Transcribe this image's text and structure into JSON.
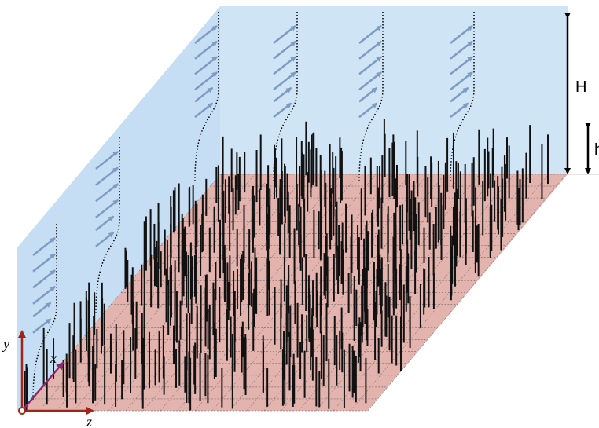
{
  "annotations": {
    "outer_height": "H",
    "canopy_height": "h"
  },
  "axes": {
    "x": "x",
    "y": "y",
    "z": "z"
  }
}
